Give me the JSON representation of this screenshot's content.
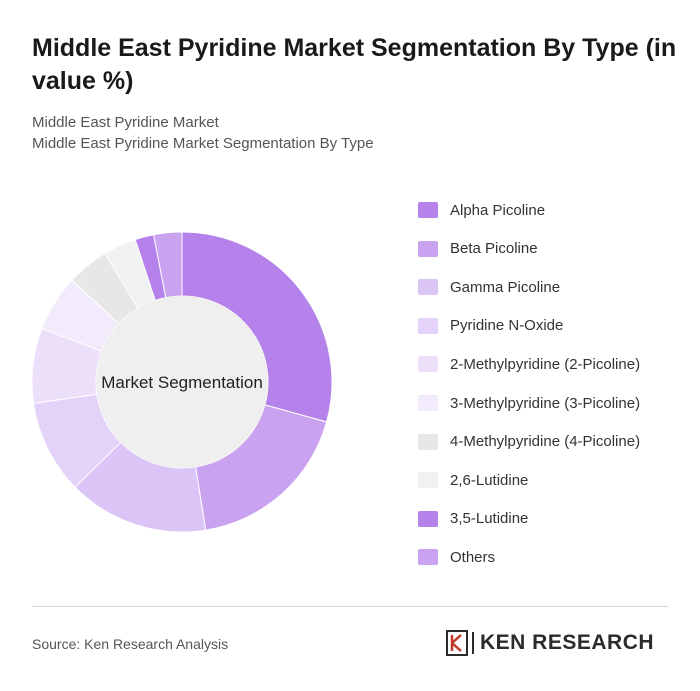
{
  "header": {
    "title": "Middle East Pyridine Market Segmentation By Type (in value %)",
    "subtitle_1": "Middle East Pyridine Market",
    "subtitle_2": "Middle East Pyridine Market Segmentation By Type"
  },
  "chart_data": {
    "type": "donut",
    "center_label": "Market Segmentation",
    "legend_position": "right",
    "slices": [
      {
        "name": "Alpha Picoline",
        "value": 29,
        "color": "#b482ea"
      },
      {
        "name": "Beta Picoline",
        "value": 18,
        "color": "#c9a3f0"
      },
      {
        "name": "Gamma Picoline",
        "value": 15,
        "color": "#dbc4f6"
      },
      {
        "name": "Pyridine N-Oxide",
        "value": 10,
        "color": "#e4d3f8"
      },
      {
        "name": "2-Methylpyridine (2-Picoline)",
        "value": 8,
        "color": "#ecdffa"
      },
      {
        "name": "3-Methylpyridine (3-Picoline)",
        "value": 6,
        "color": "#f2ebfc"
      },
      {
        "name": "4-Methylpyridine (4-Picoline)",
        "value": 4.5,
        "color": "#e7e7e7"
      },
      {
        "name": "2,6-Lutidine",
        "value": 3.5,
        "color": "#f1f1f1"
      },
      {
        "name": "3,5-Lutidine",
        "value": 2,
        "color": "#b482ea"
      },
      {
        "name": "Others",
        "value": 3,
        "color": "#c9a3f0"
      }
    ]
  },
  "footer": {
    "source": "Source: Ken Research Analysis",
    "logo_text": "KEN RESEARCH"
  }
}
